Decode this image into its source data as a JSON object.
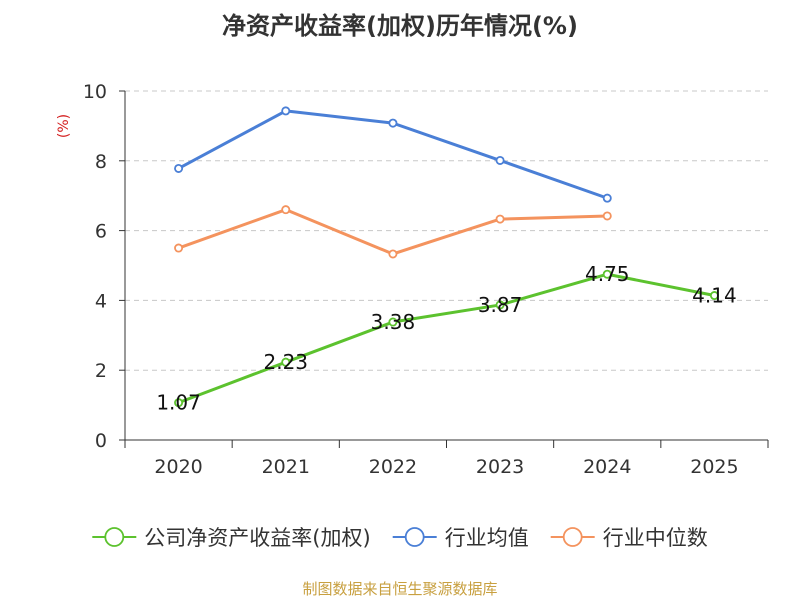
{
  "title": "净资产收益率(加权)历年情况(%)",
  "source": "制图数据来自恒生聚源数据库",
  "chart_data": {
    "type": "line",
    "title": "净资产收益率(加权)历年情况(%)",
    "ylabel": "(%)",
    "xlabel": "",
    "ylim": [
      0,
      10
    ],
    "yticks": [
      0,
      2,
      4,
      6,
      8,
      10
    ],
    "grid": true,
    "legend_position": "bottom",
    "categories": [
      "2020",
      "2021",
      "2022",
      "2023",
      "2024",
      "2025"
    ],
    "series": [
      {
        "name": "公司净资产收益率(加权)",
        "color": "#5cc22e",
        "values": [
          1.07,
          2.23,
          3.38,
          3.87,
          4.75,
          4.14
        ],
        "data_labels": [
          "1.07",
          "2.23",
          "3.38",
          "3.87",
          "4.75",
          "4.14"
        ]
      },
      {
        "name": "行业均值",
        "color": "#4a7fd6",
        "values": [
          7.78,
          9.43,
          9.08,
          8.01,
          6.93,
          null
        ]
      },
      {
        "name": "行业中位数",
        "color": "#f4935e",
        "values": [
          5.5,
          6.6,
          5.33,
          6.33,
          6.42,
          null
        ]
      }
    ]
  }
}
